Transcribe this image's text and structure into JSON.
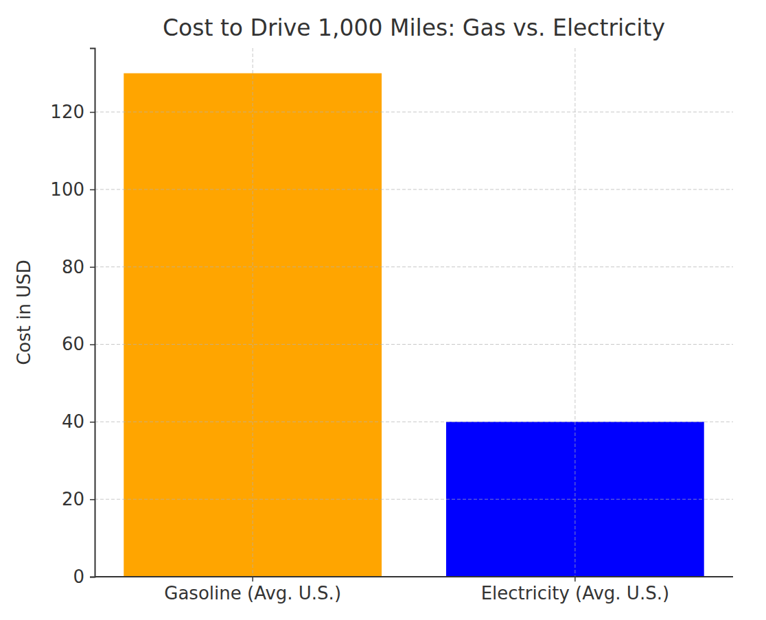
{
  "chart_data": {
    "type": "bar",
    "title": "Cost to Drive 1,000 Miles: Gas vs. Electricity",
    "y_label": "Cost in USD",
    "categories": [
      "Gasoline (Avg. U.S.)",
      "Electricity (Avg. U.S.)"
    ],
    "values": [
      130,
      40
    ],
    "colors": [
      "#FFA500",
      "#0000FF"
    ],
    "ylim": [
      0,
      136.5
    ],
    "yticks": [
      0,
      20,
      40,
      60,
      80,
      100,
      120
    ],
    "grid": true
  }
}
